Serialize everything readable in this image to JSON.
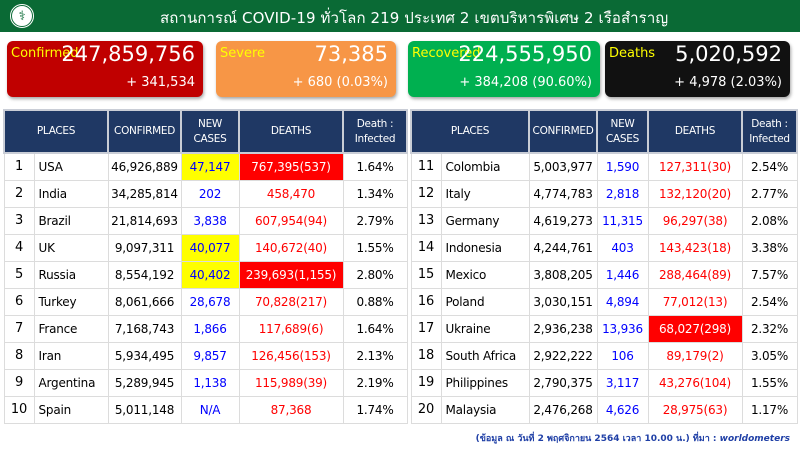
{
  "header": {
    "title": "สถานการณ์ COVID-19 ทั่วโลก 219 ประเทศ 2 เขตบริหารพิเศษ 2 เรือสำราญ",
    "logo_icon": "ministry-of-public-health-seal"
  },
  "cards": {
    "confirmed": {
      "label": "Confirmed",
      "value": "247,859,756",
      "delta": "+ 341,534",
      "color": "#c00000"
    },
    "severe": {
      "label": "Severe",
      "value": "73,385",
      "delta": "+ 680 (0.03%)",
      "color": "#f79646"
    },
    "recovered": {
      "label": "Recovered",
      "value": "224,555,950",
      "delta": "+ 384,208 (90.60%)",
      "color": "#00b050"
    },
    "deaths": {
      "label": "Deaths",
      "value": "5,020,592",
      "delta": "+ 4,978 (2.03%)",
      "color": "#111111"
    }
  },
  "table": {
    "headers": {
      "places": "PLACES",
      "confirmed": "CONFIRMED",
      "new_cases_1": "NEW",
      "new_cases_2": "CASES",
      "deaths": "DEATHS",
      "ratio_1": "Death :",
      "ratio_2": "Infected"
    },
    "left_rows": [
      {
        "rank": "1",
        "place": "USA",
        "confirmed": "46,926,889",
        "new_cases": "47,147",
        "new_hl": true,
        "deaths": "767,395(537)",
        "death_hl": true,
        "ratio": "1.64%"
      },
      {
        "rank": "2",
        "place": "India",
        "confirmed": "34,285,814",
        "new_cases": "202",
        "new_hl": false,
        "deaths": "458,470",
        "death_hl": false,
        "ratio": "1.34%"
      },
      {
        "rank": "3",
        "place": "Brazil",
        "confirmed": "21,814,693",
        "new_cases": "3,838",
        "new_hl": false,
        "deaths": "607,954(94)",
        "death_hl": false,
        "ratio": "2.79%"
      },
      {
        "rank": "4",
        "place": "UK",
        "confirmed": "9,097,311",
        "new_cases": "40,077",
        "new_hl": true,
        "deaths": "140,672(40)",
        "death_hl": false,
        "ratio": "1.55%"
      },
      {
        "rank": "5",
        "place": "Russia",
        "confirmed": "8,554,192",
        "new_cases": "40,402",
        "new_hl": true,
        "deaths": "239,693(1,155)",
        "death_hl": true,
        "ratio": "2.80%"
      },
      {
        "rank": "6",
        "place": "Turkey",
        "confirmed": "8,061,666",
        "new_cases": "28,678",
        "new_hl": false,
        "deaths": "70,828(217)",
        "death_hl": false,
        "ratio": "0.88%"
      },
      {
        "rank": "7",
        "place": "France",
        "confirmed": "7,168,743",
        "new_cases": "1,866",
        "new_hl": false,
        "deaths": "117,689(6)",
        "death_hl": false,
        "ratio": "1.64%"
      },
      {
        "rank": "8",
        "place": "Iran",
        "confirmed": "5,934,495",
        "new_cases": "9,857",
        "new_hl": false,
        "deaths": "126,456(153)",
        "death_hl": false,
        "ratio": "2.13%"
      },
      {
        "rank": "9",
        "place": "Argentina",
        "confirmed": "5,289,945",
        "new_cases": "1,138",
        "new_hl": false,
        "deaths": "115,989(39)",
        "death_hl": false,
        "ratio": "2.19%"
      },
      {
        "rank": "10",
        "place": "Spain",
        "confirmed": "5,011,148",
        "new_cases": "N/A",
        "new_hl": false,
        "deaths": "87,368",
        "death_hl": false,
        "ratio": "1.74%"
      }
    ],
    "right_rows": [
      {
        "rank": "11",
        "place": "Colombia",
        "confirmed": "5,003,977",
        "new_cases": "1,590",
        "new_hl": false,
        "deaths": "127,311(30)",
        "death_hl": false,
        "ratio": "2.54%"
      },
      {
        "rank": "12",
        "place": "Italy",
        "confirmed": "4,774,783",
        "new_cases": "2,818",
        "new_hl": false,
        "deaths": "132,120(20)",
        "death_hl": false,
        "ratio": "2.77%"
      },
      {
        "rank": "13",
        "place": "Germany",
        "confirmed": "4,619,273",
        "new_cases": "11,315",
        "new_hl": false,
        "deaths": "96,297(38)",
        "death_hl": false,
        "ratio": "2.08%"
      },
      {
        "rank": "14",
        "place": "Indonesia",
        "confirmed": "4,244,761",
        "new_cases": "403",
        "new_hl": false,
        "deaths": "143,423(18)",
        "death_hl": false,
        "ratio": "3.38%"
      },
      {
        "rank": "15",
        "place": "Mexico",
        "confirmed": "3,808,205",
        "new_cases": "1,446",
        "new_hl": false,
        "deaths": "288,464(89)",
        "death_hl": false,
        "ratio": "7.57%"
      },
      {
        "rank": "16",
        "place": "Poland",
        "confirmed": "3,030,151",
        "new_cases": "4,894",
        "new_hl": false,
        "deaths": "77,012(13)",
        "death_hl": false,
        "ratio": "2.54%"
      },
      {
        "rank": "17",
        "place": "Ukraine",
        "confirmed": "2,936,238",
        "new_cases": "13,936",
        "new_hl": false,
        "deaths": "68,027(298)",
        "death_hl": true,
        "ratio": "2.32%"
      },
      {
        "rank": "18",
        "place": "South Africa",
        "confirmed": "2,922,222",
        "new_cases": "106",
        "new_hl": false,
        "deaths": "89,179(2)",
        "death_hl": false,
        "ratio": "3.05%"
      },
      {
        "rank": "19",
        "place": "Philippines",
        "confirmed": "2,790,375",
        "new_cases": "3,117",
        "new_hl": false,
        "deaths": "43,276(104)",
        "death_hl": false,
        "ratio": "1.55%"
      },
      {
        "rank": "20",
        "place": "Malaysia",
        "confirmed": "2,476,268",
        "new_cases": "4,626",
        "new_hl": false,
        "deaths": "28,975(63)",
        "death_hl": false,
        "ratio": "1.17%"
      }
    ]
  },
  "footer": {
    "note": "(ข้อมูล ณ วันที่ 2 พฤศจิกายน 2564 เวลา 10.00 น.) ที่มา : ",
    "source": "worldometers"
  },
  "colors": {
    "header_bg": "#0a6a35",
    "table_header_bg": "#1f3864",
    "highlight_yellow": "#ffff00",
    "highlight_red": "#ff0000",
    "new_cases_text": "#0000ff",
    "deaths_text": "#ff0000"
  }
}
